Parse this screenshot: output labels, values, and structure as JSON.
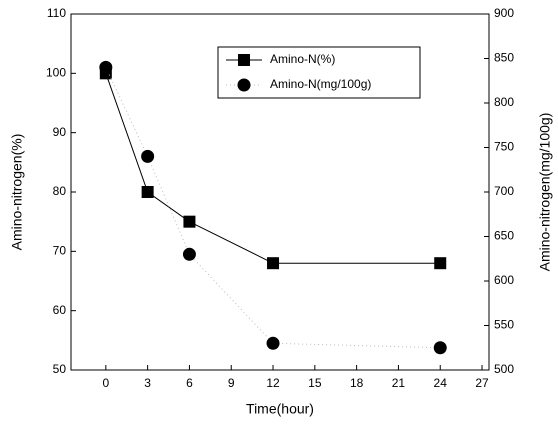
{
  "chart_data": {
    "type": "line",
    "x_label": "Time(hour)",
    "y_label": "Amino-nitrogen(%)",
    "y2_label": "Amino-nitrogen(mg/100g)",
    "x": [
      0,
      3,
      6,
      12,
      24
    ],
    "series": [
      {
        "name": "Amino-N(%)",
        "color": "#000000",
        "marker": "square",
        "line": "solid",
        "values": [
          100,
          80,
          75,
          68,
          68
        ]
      },
      {
        "name": "Amino-N(mg/100g)",
        "color": "#000000",
        "marker": "circle",
        "line": "dotted",
        "axis": "y2",
        "values": [
          840,
          740,
          630,
          530,
          525
        ]
      }
    ],
    "xlim": [
      -2.5,
      27.5
    ],
    "xticks": [
      0,
      3,
      6,
      9,
      12,
      15,
      18,
      21,
      24,
      27
    ],
    "ylim": [
      50,
      110
    ],
    "yticks": [
      50,
      60,
      70,
      80,
      90,
      100,
      110
    ],
    "y2lim": [
      500,
      900
    ],
    "y2ticks": [
      500,
      550,
      600,
      650,
      700,
      750,
      800,
      850,
      900
    ],
    "legend": "top-center",
    "grid": false
  }
}
